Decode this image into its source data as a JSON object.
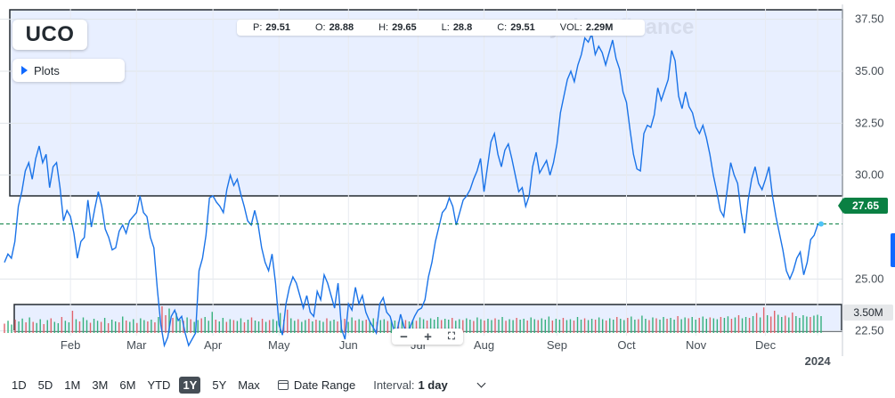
{
  "symbol": "UCO",
  "plots_label": "Plots",
  "ohlc": [
    {
      "key": "P:",
      "value": "29.51"
    },
    {
      "key": "O:",
      "value": "28.88"
    },
    {
      "key": "H:",
      "value": "29.65"
    },
    {
      "key": "L:",
      "value": "28.8"
    },
    {
      "key": "C:",
      "value": "29.51"
    },
    {
      "key": "VOL:",
      "value": "2.29M"
    }
  ],
  "watermark": "yahoo!finance",
  "current_price_label": "27.65",
  "volume_label": "3.50M",
  "zoom_controls": {
    "minus": "−",
    "plus": "+"
  },
  "ranges": [
    "1D",
    "5D",
    "1M",
    "3M",
    "6M",
    "YTD",
    "1Y",
    "5Y",
    "Max"
  ],
  "active_range": "1Y",
  "date_range_label": "Date Range",
  "interval_label": "Interval:",
  "interval_value": "1 day",
  "colors": {
    "line": "#1a73e8",
    "green": "#0a8043",
    "red": "#e0636b",
    "vol_green": "#35b07d",
    "panel": "#e8efff"
  },
  "chart_data": {
    "type": "line",
    "y_ticks": [
      "37.50",
      "35.00",
      "32.50",
      "30.00",
      "25.00",
      "22.50"
    ],
    "y_tick_values": [
      37.5,
      35.0,
      32.5,
      30.0,
      25.0,
      22.5
    ],
    "ylim": [
      21.5,
      38.0
    ],
    "x_ticks": [
      "Feb",
      "Mar",
      "Apr",
      "May",
      "Jun",
      "Jul",
      "Aug",
      "Sep",
      "Oct",
      "Nov",
      "Dec",
      "2024"
    ],
    "x_tick_index": [
      19,
      38,
      60,
      79,
      99,
      119,
      138,
      159,
      179,
      199,
      219,
      234
    ],
    "series": [
      {
        "values": [
          25.8,
          26.2,
          26.0,
          26.8,
          28.5,
          29.2,
          30.2,
          30.6,
          29.8,
          30.8,
          31.4,
          30.6,
          31.0,
          29.4,
          30.4,
          30.6,
          29.4,
          27.8,
          28.3,
          28.0,
          27.2,
          26.0,
          26.8,
          27.0,
          28.8,
          27.5,
          28.4,
          29.2,
          28.5,
          27.4,
          27.0,
          26.4,
          26.5,
          27.3,
          27.6,
          27.2,
          27.8,
          28.0,
          28.2,
          29.0,
          28.2,
          28.0,
          27.0,
          26.5,
          24.5,
          22.8,
          21.8,
          22.2,
          23.2,
          23.5,
          23.0,
          23.2,
          22.4,
          21.8,
          22.1,
          22.4,
          25.4,
          26.0,
          27.1,
          28.9,
          29.0,
          28.7,
          28.5,
          28.2,
          29.3,
          30.0,
          29.5,
          29.8,
          29.1,
          28.5,
          27.8,
          27.6,
          28.3,
          27.6,
          26.5,
          25.8,
          25.4,
          26.2,
          24.8,
          22.8,
          22.3,
          23.8,
          24.6,
          25.1,
          24.8,
          24.2,
          23.6,
          24.2,
          23.4,
          23.2,
          24.4,
          24.0,
          25.2,
          24.8,
          24.2,
          23.6,
          24.8,
          22.6,
          22.1,
          23.8,
          23.5,
          24.6,
          23.8,
          24.2,
          23.4,
          23.0,
          22.7,
          22.4,
          23.8,
          24.1,
          23.4,
          23.2,
          22.6,
          22.5,
          23.3,
          22.7,
          22.3,
          22.8,
          23.2,
          23.5,
          23.6,
          24.0,
          25.1,
          25.8,
          26.8,
          27.5,
          28.2,
          28.4,
          28.9,
          28.5,
          27.6,
          28.2,
          28.8,
          29.0,
          29.3,
          29.8,
          30.2,
          30.8,
          29.2,
          30.4,
          31.6,
          32.0,
          31.0,
          30.4,
          31.2,
          31.5,
          30.8,
          30.0,
          29.2,
          29.4,
          28.5,
          29.0,
          30.4,
          31.1,
          30.1,
          30.4,
          30.7,
          30.0,
          30.6,
          31.5,
          33.0,
          33.8,
          34.6,
          35.0,
          34.5,
          35.3,
          35.8,
          36.6,
          36.4,
          36.8,
          35.8,
          36.2,
          35.9,
          35.3,
          35.9,
          36.5,
          35.6,
          35.1,
          34.0,
          33.5,
          32.2,
          31.0,
          30.3,
          30.2,
          32.0,
          32.4,
          32.3,
          32.9,
          34.2,
          33.6,
          34.1,
          34.6,
          36.0,
          35.5,
          33.8,
          33.2,
          34.0,
          33.3,
          33.0,
          32.3,
          32.0,
          32.4,
          31.8,
          31.0,
          30.0,
          29.2,
          28.3,
          28.0,
          29.3,
          30.6,
          30.0,
          29.6,
          28.2,
          27.2,
          28.8,
          29.8,
          30.4,
          29.6,
          29.3,
          29.8,
          30.4,
          29.0,
          28.0,
          27.2,
          26.4,
          25.4,
          25.0,
          25.4,
          26.0,
          26.3,
          25.2,
          25.8,
          26.9,
          27.1,
          27.6,
          27.65
        ]
      }
    ],
    "volume": [
      {
        "v": 0.42,
        "c": "r"
      },
      {
        "v": 0.55,
        "c": "g"
      },
      {
        "v": 0.38,
        "c": "g"
      },
      {
        "v": 0.6,
        "c": "r"
      },
      {
        "v": 0.52,
        "c": "g"
      },
      {
        "v": 0.65,
        "c": "g"
      },
      {
        "v": 0.48,
        "c": "r"
      },
      {
        "v": 0.7,
        "c": "g"
      },
      {
        "v": 0.5,
        "c": "r"
      },
      {
        "v": 0.45,
        "c": "g"
      },
      {
        "v": 0.62,
        "c": "g"
      },
      {
        "v": 0.4,
        "c": "r"
      },
      {
        "v": 0.58,
        "c": "g"
      },
      {
        "v": 0.66,
        "c": "r"
      },
      {
        "v": 0.5,
        "c": "g"
      },
      {
        "v": 0.44,
        "c": "g"
      },
      {
        "v": 0.72,
        "c": "r"
      },
      {
        "v": 0.55,
        "c": "g"
      },
      {
        "v": 0.48,
        "c": "g"
      },
      {
        "v": 1.0,
        "c": "r"
      },
      {
        "v": 0.62,
        "c": "g"
      },
      {
        "v": 0.52,
        "c": "r"
      },
      {
        "v": 0.7,
        "c": "g"
      },
      {
        "v": 0.58,
        "c": "g"
      },
      {
        "v": 0.46,
        "c": "r"
      },
      {
        "v": 0.64,
        "c": "g"
      },
      {
        "v": 0.55,
        "c": "g"
      },
      {
        "v": 0.5,
        "c": "r"
      },
      {
        "v": 0.68,
        "c": "g"
      },
      {
        "v": 0.44,
        "c": "r"
      },
      {
        "v": 0.6,
        "c": "g"
      },
      {
        "v": 0.52,
        "c": "g"
      },
      {
        "v": 0.48,
        "c": "r"
      },
      {
        "v": 0.74,
        "c": "g"
      },
      {
        "v": 0.56,
        "c": "r"
      },
      {
        "v": 0.5,
        "c": "g"
      },
      {
        "v": 0.62,
        "c": "g"
      },
      {
        "v": 0.45,
        "c": "r"
      },
      {
        "v": 0.66,
        "c": "g"
      },
      {
        "v": 0.58,
        "c": "g"
      },
      {
        "v": 0.52,
        "c": "r"
      },
      {
        "v": 0.6,
        "c": "g"
      },
      {
        "v": 0.48,
        "c": "r"
      },
      {
        "v": 0.72,
        "c": "g"
      },
      {
        "v": 1.2,
        "c": "r"
      },
      {
        "v": 0.8,
        "c": "r"
      },
      {
        "v": 1.1,
        "c": "g"
      },
      {
        "v": 0.68,
        "c": "r"
      },
      {
        "v": 0.9,
        "c": "g"
      },
      {
        "v": 0.6,
        "c": "g"
      },
      {
        "v": 0.55,
        "c": "r"
      },
      {
        "v": 0.7,
        "c": "g"
      },
      {
        "v": 0.62,
        "c": "r"
      },
      {
        "v": 0.5,
        "c": "g"
      },
      {
        "v": 0.58,
        "c": "g"
      },
      {
        "v": 0.66,
        "c": "r"
      },
      {
        "v": 0.72,
        "c": "g"
      },
      {
        "v": 0.55,
        "c": "g"
      },
      {
        "v": 0.95,
        "c": "g"
      },
      {
        "v": 0.6,
        "c": "r"
      },
      {
        "v": 0.52,
        "c": "g"
      },
      {
        "v": 0.68,
        "c": "g"
      },
      {
        "v": 0.5,
        "c": "r"
      },
      {
        "v": 0.62,
        "c": "g"
      },
      {
        "v": 0.58,
        "c": "r"
      },
      {
        "v": 0.54,
        "c": "g"
      },
      {
        "v": 0.66,
        "c": "g"
      },
      {
        "v": 0.48,
        "c": "r"
      },
      {
        "v": 0.6,
        "c": "g"
      },
      {
        "v": 0.7,
        "c": "r"
      },
      {
        "v": 0.56,
        "c": "g"
      },
      {
        "v": 0.52,
        "c": "g"
      },
      {
        "v": 0.64,
        "c": "r"
      },
      {
        "v": 0.5,
        "c": "g"
      },
      {
        "v": 0.58,
        "c": "r"
      },
      {
        "v": 0.62,
        "c": "g"
      },
      {
        "v": 0.54,
        "c": "g"
      },
      {
        "v": 0.9,
        "c": "g"
      },
      {
        "v": 0.6,
        "c": "r"
      },
      {
        "v": 1.05,
        "c": "r"
      },
      {
        "v": 0.66,
        "c": "g"
      },
      {
        "v": 0.55,
        "c": "g"
      },
      {
        "v": 0.62,
        "c": "r"
      },
      {
        "v": 0.5,
        "c": "g"
      },
      {
        "v": 0.58,
        "c": "g"
      },
      {
        "v": 0.64,
        "c": "r"
      },
      {
        "v": 0.52,
        "c": "g"
      },
      {
        "v": 0.6,
        "c": "r"
      },
      {
        "v": 0.56,
        "c": "g"
      },
      {
        "v": 0.5,
        "c": "g"
      },
      {
        "v": 0.66,
        "c": "r"
      },
      {
        "v": 0.54,
        "c": "g"
      },
      {
        "v": 0.6,
        "c": "g"
      },
      {
        "v": 0.52,
        "c": "r"
      },
      {
        "v": 0.58,
        "c": "g"
      },
      {
        "v": 0.64,
        "c": "r"
      },
      {
        "v": 0.5,
        "c": "g"
      },
      {
        "v": 0.7,
        "c": "g"
      },
      {
        "v": 0.56,
        "c": "r"
      },
      {
        "v": 0.62,
        "c": "g"
      },
      {
        "v": 0.55,
        "c": "g"
      },
      {
        "v": 0.6,
        "c": "r"
      },
      {
        "v": 0.52,
        "c": "g"
      },
      {
        "v": 0.66,
        "c": "g"
      },
      {
        "v": 0.5,
        "c": "r"
      },
      {
        "v": 0.58,
        "c": "g"
      },
      {
        "v": 0.62,
        "c": "g"
      },
      {
        "v": 0.54,
        "c": "r"
      },
      {
        "v": 0.6,
        "c": "g"
      },
      {
        "v": 0.56,
        "c": "g"
      },
      {
        "v": 0.5,
        "c": "r"
      },
      {
        "v": 0.64,
        "c": "g"
      },
      {
        "v": 0.58,
        "c": "r"
      },
      {
        "v": 0.52,
        "c": "g"
      },
      {
        "v": 0.6,
        "c": "g"
      },
      {
        "v": 0.55,
        "c": "r"
      },
      {
        "v": 0.7,
        "c": "g"
      },
      {
        "v": 0.62,
        "c": "g"
      },
      {
        "v": 0.56,
        "c": "r"
      },
      {
        "v": 0.66,
        "c": "g"
      },
      {
        "v": 0.6,
        "c": "g"
      },
      {
        "v": 0.72,
        "c": "g"
      },
      {
        "v": 0.58,
        "c": "r"
      },
      {
        "v": 0.64,
        "c": "g"
      },
      {
        "v": 0.6,
        "c": "g"
      },
      {
        "v": 0.68,
        "c": "r"
      },
      {
        "v": 0.55,
        "c": "g"
      },
      {
        "v": 0.62,
        "c": "g"
      },
      {
        "v": 0.58,
        "c": "r"
      },
      {
        "v": 0.66,
        "c": "g"
      },
      {
        "v": 0.6,
        "c": "g"
      },
      {
        "v": 0.54,
        "c": "r"
      },
      {
        "v": 0.7,
        "c": "g"
      },
      {
        "v": 0.62,
        "c": "g"
      },
      {
        "v": 0.56,
        "c": "r"
      },
      {
        "v": 0.64,
        "c": "g"
      },
      {
        "v": 0.58,
        "c": "g"
      },
      {
        "v": 0.66,
        "c": "r"
      },
      {
        "v": 0.6,
        "c": "g"
      },
      {
        "v": 0.72,
        "c": "g"
      },
      {
        "v": 0.55,
        "c": "r"
      },
      {
        "v": 0.62,
        "c": "g"
      },
      {
        "v": 0.58,
        "c": "g"
      },
      {
        "v": 0.68,
        "c": "r"
      },
      {
        "v": 0.6,
        "c": "g"
      },
      {
        "v": 0.64,
        "c": "g"
      },
      {
        "v": 0.56,
        "c": "r"
      },
      {
        "v": 0.7,
        "c": "g"
      },
      {
        "v": 0.62,
        "c": "g"
      },
      {
        "v": 0.58,
        "c": "r"
      },
      {
        "v": 0.66,
        "c": "g"
      },
      {
        "v": 0.6,
        "c": "g"
      },
      {
        "v": 0.74,
        "c": "g"
      },
      {
        "v": 0.56,
        "c": "r"
      },
      {
        "v": 0.64,
        "c": "g"
      },
      {
        "v": 0.6,
        "c": "g"
      },
      {
        "v": 0.68,
        "c": "r"
      },
      {
        "v": 0.58,
        "c": "g"
      },
      {
        "v": 0.62,
        "c": "g"
      },
      {
        "v": 0.56,
        "c": "r"
      },
      {
        "v": 0.72,
        "c": "g"
      },
      {
        "v": 0.6,
        "c": "g"
      },
      {
        "v": 0.66,
        "c": "r"
      },
      {
        "v": 0.58,
        "c": "g"
      },
      {
        "v": 0.64,
        "c": "g"
      },
      {
        "v": 0.6,
        "c": "r"
      },
      {
        "v": 0.7,
        "c": "g"
      },
      {
        "v": 0.62,
        "c": "g"
      },
      {
        "v": 0.56,
        "c": "r"
      },
      {
        "v": 0.66,
        "c": "g"
      },
      {
        "v": 0.6,
        "c": "g"
      },
      {
        "v": 0.72,
        "c": "r"
      },
      {
        "v": 0.64,
        "c": "g"
      },
      {
        "v": 0.58,
        "c": "g"
      },
      {
        "v": 0.68,
        "c": "r"
      },
      {
        "v": 0.74,
        "c": "g"
      },
      {
        "v": 0.6,
        "c": "g"
      },
      {
        "v": 0.62,
        "c": "r"
      },
      {
        "v": 0.78,
        "c": "g"
      },
      {
        "v": 0.64,
        "c": "g"
      },
      {
        "v": 0.58,
        "c": "r"
      },
      {
        "v": 0.7,
        "c": "g"
      },
      {
        "v": 0.66,
        "c": "r"
      },
      {
        "v": 0.6,
        "c": "g"
      },
      {
        "v": 0.72,
        "c": "g"
      },
      {
        "v": 0.64,
        "c": "r"
      },
      {
        "v": 0.68,
        "c": "g"
      },
      {
        "v": 0.6,
        "c": "g"
      },
      {
        "v": 0.76,
        "c": "r"
      },
      {
        "v": 0.62,
        "c": "g"
      },
      {
        "v": 0.7,
        "c": "g"
      },
      {
        "v": 0.66,
        "c": "r"
      },
      {
        "v": 0.72,
        "c": "g"
      },
      {
        "v": 0.6,
        "c": "g"
      },
      {
        "v": 0.68,
        "c": "r"
      },
      {
        "v": 0.74,
        "c": "g"
      },
      {
        "v": 0.64,
        "c": "g"
      },
      {
        "v": 0.7,
        "c": "r"
      },
      {
        "v": 0.66,
        "c": "g"
      },
      {
        "v": 0.62,
        "c": "g"
      },
      {
        "v": 0.72,
        "c": "r"
      },
      {
        "v": 0.68,
        "c": "g"
      },
      {
        "v": 0.75,
        "c": "g"
      },
      {
        "v": 0.64,
        "c": "r"
      },
      {
        "v": 0.7,
        "c": "g"
      },
      {
        "v": 0.8,
        "c": "r"
      },
      {
        "v": 0.66,
        "c": "g"
      },
      {
        "v": 0.72,
        "c": "g"
      },
      {
        "v": 0.68,
        "c": "r"
      },
      {
        "v": 0.76,
        "c": "g"
      },
      {
        "v": 0.9,
        "c": "r"
      },
      {
        "v": 0.7,
        "c": "g"
      },
      {
        "v": 1.15,
        "c": "r"
      },
      {
        "v": 0.8,
        "c": "g"
      },
      {
        "v": 0.74,
        "c": "r"
      },
      {
        "v": 1.0,
        "c": "r"
      },
      {
        "v": 0.82,
        "c": "g"
      },
      {
        "v": 0.72,
        "c": "g"
      },
      {
        "v": 0.78,
        "c": "r"
      },
      {
        "v": 0.7,
        "c": "g"
      },
      {
        "v": 0.92,
        "c": "r"
      },
      {
        "v": 0.76,
        "c": "g"
      },
      {
        "v": 0.68,
        "c": "g"
      },
      {
        "v": 0.8,
        "c": "g"
      },
      {
        "v": 0.74,
        "c": "g"
      },
      {
        "v": 0.72,
        "c": "r"
      },
      {
        "v": 0.78,
        "c": "g"
      },
      {
        "v": 0.82,
        "c": "g"
      },
      {
        "v": 0.76,
        "c": "g"
      }
    ]
  }
}
